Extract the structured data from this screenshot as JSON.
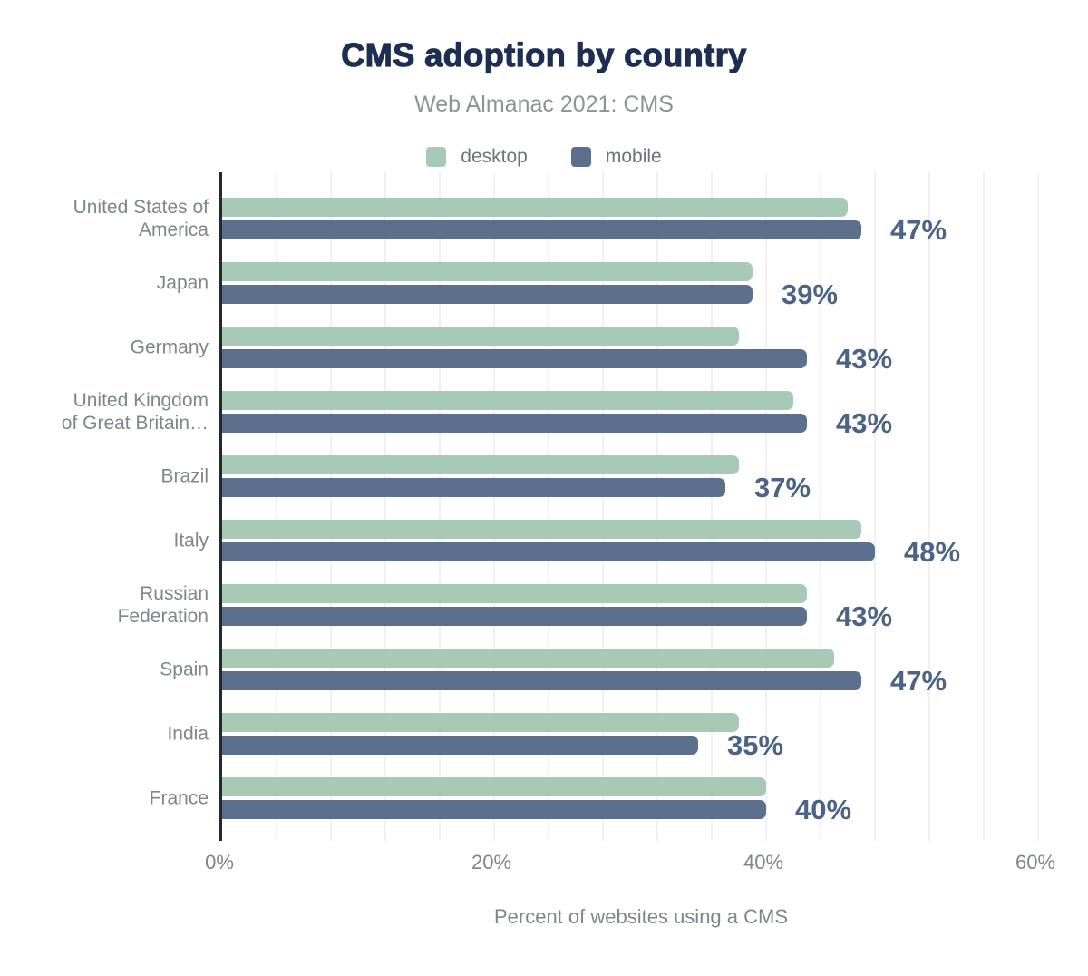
{
  "chart_data": {
    "type": "bar",
    "orientation": "horizontal",
    "title": "CMS adoption by country",
    "subtitle": "Web Almanac 2021: CMS",
    "xlabel": "Percent of websites using a CMS",
    "categories": [
      "United States of America",
      "Japan",
      "Germany",
      "United Kingdom of Great Britain…",
      "Brazil",
      "Italy",
      "Russian Federation",
      "Spain",
      "India",
      "France"
    ],
    "category_display_lines": [
      [
        "United States of",
        "America"
      ],
      [
        "Japan"
      ],
      [
        "Germany"
      ],
      [
        "United Kingdom",
        "of Great Britain…"
      ],
      [
        "Brazil"
      ],
      [
        "Italy"
      ],
      [
        "Russian",
        "Federation"
      ],
      [
        "Spain"
      ],
      [
        "India"
      ],
      [
        "France"
      ]
    ],
    "series": [
      {
        "name": "desktop",
        "color": "#a8c9b6",
        "values": [
          46,
          39,
          38,
          42,
          38,
          47,
          43,
          45,
          38,
          40
        ]
      },
      {
        "name": "mobile",
        "color": "#5c708e",
        "values": [
          47,
          39,
          43,
          43,
          37,
          48,
          43,
          47,
          35,
          40
        ]
      }
    ],
    "bar_value_labels": [
      "47%",
      "39%",
      "43%",
      "43%",
      "37%",
      "48%",
      "43%",
      "47%",
      "35%",
      "40%"
    ],
    "value_labels_for_series": "mobile",
    "xlim": [
      0,
      60
    ],
    "x_ticks": [
      {
        "value": 0,
        "label": "0%"
      },
      {
        "value": 20,
        "label": "20%"
      },
      {
        "value": 40,
        "label": "40%"
      },
      {
        "value": 60,
        "label": "60%"
      }
    ],
    "minor_gridline_step_pct": 4,
    "grid": true,
    "legend_position": "top"
  },
  "colors": {
    "background": "#ffffff",
    "title": "#1d2e52",
    "subtitle": "#8e9398",
    "axis_text": "#7f858d",
    "axis_line": "#23282d",
    "gridline": "#f2f0f1",
    "value_label": "#4d6384",
    "desktop_bar": "#a8c9b6",
    "mobile_bar": "#5c708e"
  }
}
